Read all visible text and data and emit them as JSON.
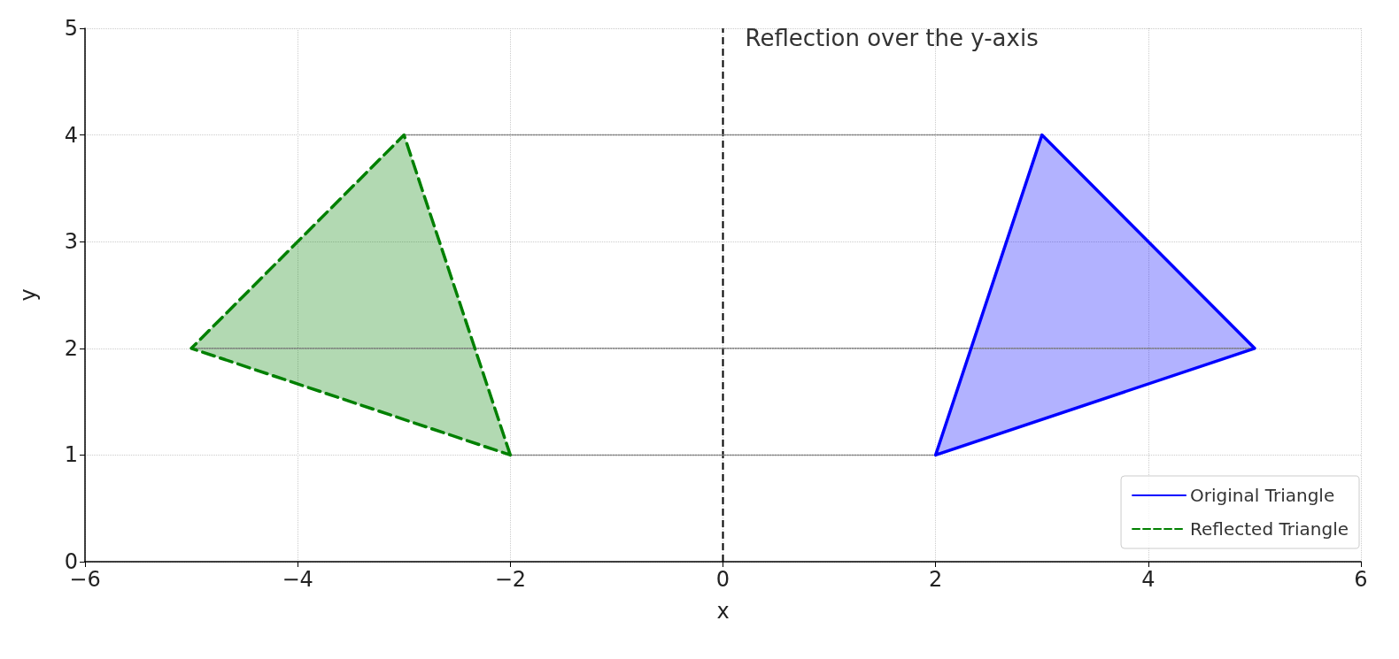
{
  "chart_data": {
    "type": "area",
    "xlabel": "x",
    "ylabel": "y",
    "series": [
      {
        "name": "Original Triangle",
        "color": "#0000ff",
        "line_style": "solid",
        "x": [
          2,
          3,
          5,
          2
        ],
        "values": [
          1,
          4,
          2,
          1
        ]
      },
      {
        "name": "Reflected Triangle",
        "color": "#008000",
        "line_style": "dashed",
        "x": [
          -2,
          -3,
          -5,
          -2
        ],
        "values": [
          1,
          4,
          2,
          1
        ]
      },
      {
        "type": "line",
        "color": "#808080",
        "line_style": "dotted",
        "x": [
          3,
          -3
        ],
        "values": [
          4,
          4
        ]
      },
      {
        "type": "line",
        "color": "#808080",
        "line_style": "dotted",
        "x": [
          5,
          -5
        ],
        "values": [
          2,
          2
        ]
      },
      {
        "type": "line",
        "color": "#808080",
        "line_style": "dotted",
        "x": [
          2,
          -2
        ],
        "values": [
          1,
          1
        ]
      }
    ],
    "ref_lines": [
      {
        "axis": "x",
        "value": 0,
        "label": "Reflection over the y-axis",
        "color": "#000000",
        "line_style": "dashed"
      }
    ],
    "xlim": [
      -6,
      6
    ],
    "xticks": [
      {
        "value": -6,
        "label": "−6"
      },
      {
        "value": -4,
        "label": "−4"
      },
      {
        "value": -2,
        "label": "−2"
      },
      0,
      2,
      4,
      6
    ],
    "ylim": [
      0,
      5
    ],
    "yticks": [
      0,
      1,
      2,
      3,
      4,
      5
    ],
    "grid": true,
    "legend": "bottom right",
    "marker": "none"
  }
}
